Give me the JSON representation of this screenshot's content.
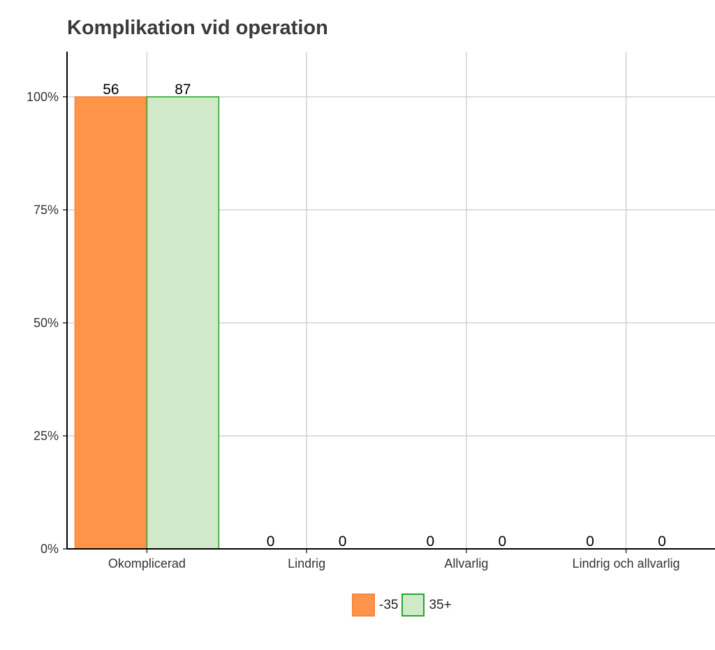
{
  "chart_data": {
    "type": "bar",
    "title": "Komplikation vid operation",
    "categories": [
      "Okomplicerad",
      "Lindrig",
      "Allvarlig",
      "Lindrig och allvarlig"
    ],
    "series": [
      {
        "name": "-35",
        "values": [
          100,
          0,
          0,
          0
        ],
        "counts": [
          "56",
          "0",
          "0",
          "0"
        ],
        "fill": "#fd9449",
        "stroke": "#f7853e"
      },
      {
        "name": "35+",
        "values": [
          100,
          0,
          0,
          0
        ],
        "counts": [
          "87",
          "0",
          "0",
          "0"
        ],
        "fill": "#cfe9c9",
        "stroke": "#2ca02c"
      }
    ],
    "ylim": [
      0,
      110
    ],
    "yticks": [
      0,
      25,
      50,
      75,
      100
    ],
    "ytick_labels": [
      "0%",
      "25%",
      "50%",
      "75%",
      "100%"
    ],
    "xlabel": "",
    "ylabel": "",
    "grid": true,
    "legend_position": "bottom-center"
  }
}
